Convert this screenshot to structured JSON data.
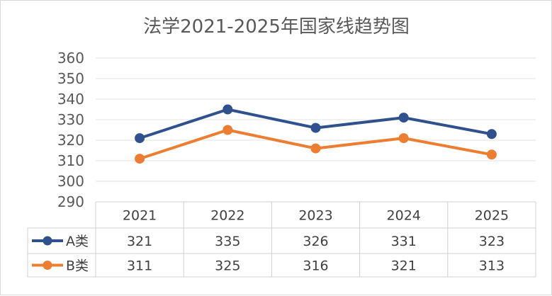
{
  "chart_data": {
    "type": "line",
    "title": "法学2021-2025年国家线趋势图",
    "categories": [
      "2021",
      "2022",
      "2023",
      "2024",
      "2025"
    ],
    "series": [
      {
        "name": "A类",
        "values": [
          321,
          335,
          326,
          331,
          323
        ],
        "color": "#2f528f"
      },
      {
        "name": "B类",
        "values": [
          311,
          325,
          316,
          321,
          313
        ],
        "color": "#ed7d31"
      }
    ],
    "ylim": [
      290,
      360
    ],
    "yticks": [
      "360",
      "350",
      "340",
      "330",
      "320",
      "310",
      "300",
      "290"
    ],
    "grid": true,
    "legend": "data-table"
  }
}
